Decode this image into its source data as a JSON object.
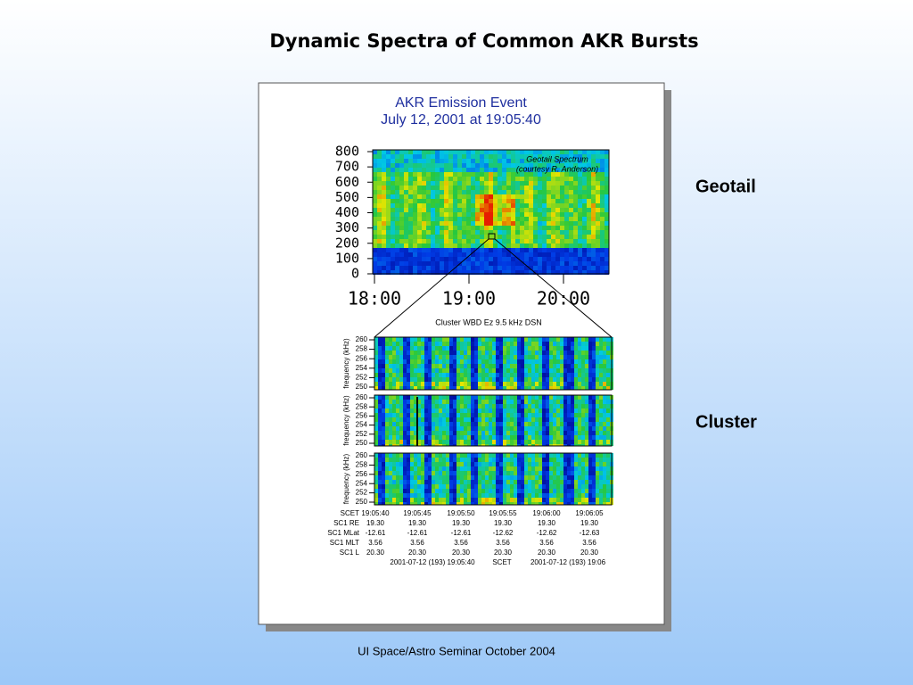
{
  "title": "Dynamic Spectra of Common AKR Bursts",
  "labels": [
    "Geotail",
    "Cluster"
  ],
  "footer": "UI Space/Astro Seminar October 2004",
  "figure": {
    "title": [
      "AKR Emission Event",
      "July 12, 2001 at 19:05:40"
    ],
    "geotail": {
      "y_labels": [
        "800",
        "700",
        "600",
        "500",
        "400",
        "300",
        "200",
        "100",
        "0"
      ],
      "x_labels": [
        "18:00",
        "19:00",
        "20:00"
      ],
      "note": [
        "Geotail Spectrum",
        "(courtesy R. Anderson)"
      ]
    },
    "cluster": {
      "caption": "Cluster WBD Ez 9.5 kHz DSN",
      "axis_title": "frequency (kHz)",
      "y_labels": [
        "260",
        "258",
        "256",
        "254",
        "252",
        "250"
      ],
      "table": {
        "rows": [
          [
            "SCET",
            "19:05:40",
            "19:05:45",
            "19:05:50",
            "19:05:55",
            "19:06:00",
            "19:06:05"
          ],
          [
            "SC1 RE",
            "19.30",
            "19.30",
            "19.30",
            "19.30",
            "19.30",
            "19.30"
          ],
          [
            "SC1 MLat",
            "-12.61",
            "-12.61",
            "-12.61",
            "-12.62",
            "-12.62",
            "-12.63"
          ],
          [
            "SC1 MLT",
            "3.56",
            "3.56",
            "3.56",
            "3.56",
            "3.56",
            "3.56"
          ],
          [
            "SC1 L",
            "20.30",
            "20.30",
            "20.30",
            "20.30",
            "20.30",
            "20.30"
          ]
        ],
        "footer": [
          "2001-07-12 (193) 19:05:40",
          "SCET",
          "2001-07-12 (193) 19:06"
        ]
      }
    }
  }
}
